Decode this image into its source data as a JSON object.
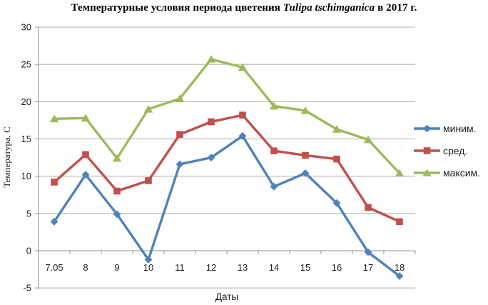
{
  "title": {
    "prefix": "Температурные условия периода цветения ",
    "italic": "Tulipa tschimganica",
    "suffix": " в 2017 г."
  },
  "chart_data": {
    "type": "line",
    "title": "Температурные условия периода цветения Tulipa tschimganica в 2017 г.",
    "xlabel": "Даты",
    "ylabel": "Температура, С",
    "ylim": [
      -5,
      30
    ],
    "yticks": [
      30,
      25,
      20,
      15,
      10,
      5,
      0,
      -5
    ],
    "grid": true,
    "legend_position": "right",
    "categories": [
      "7.05",
      "8",
      "9",
      "10",
      "11",
      "12",
      "13",
      "14",
      "15",
      "16",
      "17",
      "18"
    ],
    "series": [
      {
        "name": "миним.",
        "marker": "diamond",
        "color": "#4F81BD",
        "values": [
          3.9,
          10.2,
          4.9,
          -1.2,
          11.6,
          12.5,
          15.4,
          8.6,
          10.4,
          6.4,
          -0.2,
          -3.4
        ]
      },
      {
        "name": "сред.",
        "marker": "square",
        "color": "#C0504D",
        "values": [
          9.2,
          12.9,
          8.0,
          9.4,
          15.6,
          17.3,
          18.2,
          13.4,
          12.8,
          12.3,
          5.8,
          3.9
        ]
      },
      {
        "name": "максим.",
        "marker": "triangle",
        "color": "#9BBB59",
        "values": [
          17.7,
          17.8,
          12.4,
          19.0,
          20.4,
          25.7,
          24.6,
          19.4,
          18.8,
          16.3,
          14.9,
          10.4
        ]
      }
    ],
    "grid_color": "#ABABAB",
    "axis_color": "#8C8C8C",
    "text_color": "#1F1F1F"
  }
}
